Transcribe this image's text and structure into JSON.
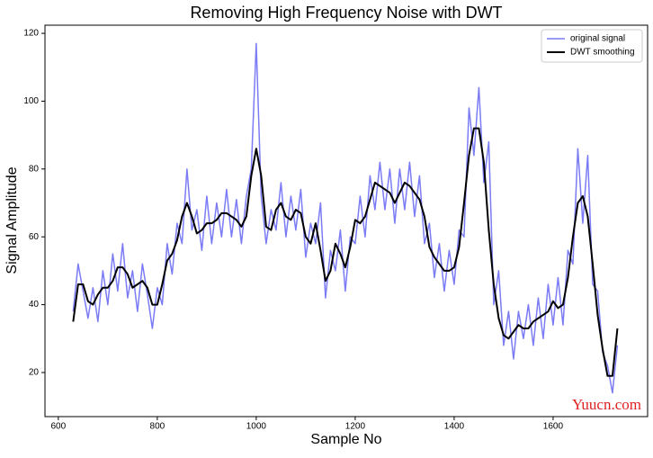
{
  "chart_data": {
    "type": "line",
    "title": "Removing High Frequency Noise with DWT",
    "xlabel": "Sample No",
    "ylabel": "Signal Amplitude",
    "annotation": "Yuucn.com",
    "x": [
      630,
      640,
      650,
      660,
      670,
      680,
      690,
      700,
      710,
      720,
      730,
      740,
      750,
      760,
      770,
      780,
      790,
      800,
      810,
      820,
      830,
      840,
      850,
      860,
      870,
      880,
      890,
      900,
      910,
      920,
      930,
      940,
      950,
      960,
      970,
      980,
      990,
      1000,
      1010,
      1020,
      1030,
      1040,
      1050,
      1060,
      1070,
      1080,
      1090,
      1100,
      1110,
      1120,
      1130,
      1140,
      1150,
      1160,
      1170,
      1180,
      1190,
      1200,
      1210,
      1220,
      1230,
      1240,
      1250,
      1260,
      1270,
      1280,
      1290,
      1300,
      1310,
      1320,
      1330,
      1340,
      1350,
      1360,
      1370,
      1380,
      1390,
      1400,
      1410,
      1420,
      1430,
      1440,
      1450,
      1460,
      1470,
      1480,
      1490,
      1500,
      1510,
      1520,
      1530,
      1540,
      1550,
      1560,
      1570,
      1580,
      1590,
      1600,
      1610,
      1620,
      1630,
      1640,
      1650,
      1660,
      1670,
      1680,
      1690,
      1700,
      1710,
      1720,
      1730
    ],
    "series": [
      {
        "name": "original signal",
        "color": "#7b7bf5",
        "width": 1.5,
        "values": [
          38,
          52,
          44,
          36,
          45,
          35,
          50,
          40,
          55,
          44,
          58,
          42,
          50,
          38,
          52,
          43,
          33,
          45,
          40,
          58,
          49,
          64,
          58,
          80,
          62,
          68,
          56,
          72,
          58,
          70,
          60,
          74,
          60,
          71,
          58,
          72,
          80,
          117,
          72,
          58,
          68,
          62,
          76,
          60,
          72,
          62,
          74,
          54,
          64,
          58,
          70,
          42,
          56,
          50,
          62,
          44,
          60,
          58,
          72,
          60,
          78,
          68,
          82,
          68,
          80,
          64,
          80,
          68,
          82,
          66,
          78,
          58,
          64,
          48,
          58,
          44,
          56,
          46,
          62,
          60,
          98,
          84,
          104,
          76,
          88,
          40,
          50,
          28,
          38,
          24,
          38,
          30,
          40,
          28,
          42,
          30,
          46,
          34,
          48,
          34,
          56,
          52,
          86,
          64,
          84,
          46,
          44,
          26,
          22,
          14,
          28
        ]
      },
      {
        "name": "DWT smoothing",
        "color": "#000000",
        "width": 2,
        "values": [
          35,
          46,
          46,
          41,
          40,
          43,
          45,
          45,
          47,
          51,
          51,
          49,
          45,
          46,
          47,
          45,
          40,
          40,
          46,
          53,
          55,
          59,
          66,
          70,
          66,
          61,
          62,
          64,
          64,
          65,
          67,
          67,
          66,
          65,
          63,
          66,
          78,
          86,
          78,
          63,
          62,
          68,
          70,
          66,
          65,
          68,
          67,
          60,
          58,
          64,
          56,
          47,
          50,
          58,
          55,
          51,
          57,
          65,
          64,
          66,
          71,
          76,
          75,
          74,
          73,
          70,
          73,
          76,
          75,
          73,
          71,
          66,
          57,
          54,
          52,
          50,
          50,
          51,
          57,
          70,
          84,
          92,
          92,
          82,
          62,
          46,
          36,
          31,
          30,
          32,
          34,
          33,
          33,
          35,
          36,
          37,
          38,
          41,
          39,
          40,
          48,
          60,
          70,
          72,
          66,
          52,
          37,
          27,
          19,
          19,
          33
        ]
      }
    ],
    "xlim": [
      573,
      1791
    ],
    "ylim": [
      7,
      122.4
    ],
    "xticks": [
      600,
      800,
      1000,
      1200,
      1400,
      1600
    ],
    "yticks": [
      20,
      40,
      60,
      80,
      100,
      120
    ],
    "legend": "upper right"
  }
}
